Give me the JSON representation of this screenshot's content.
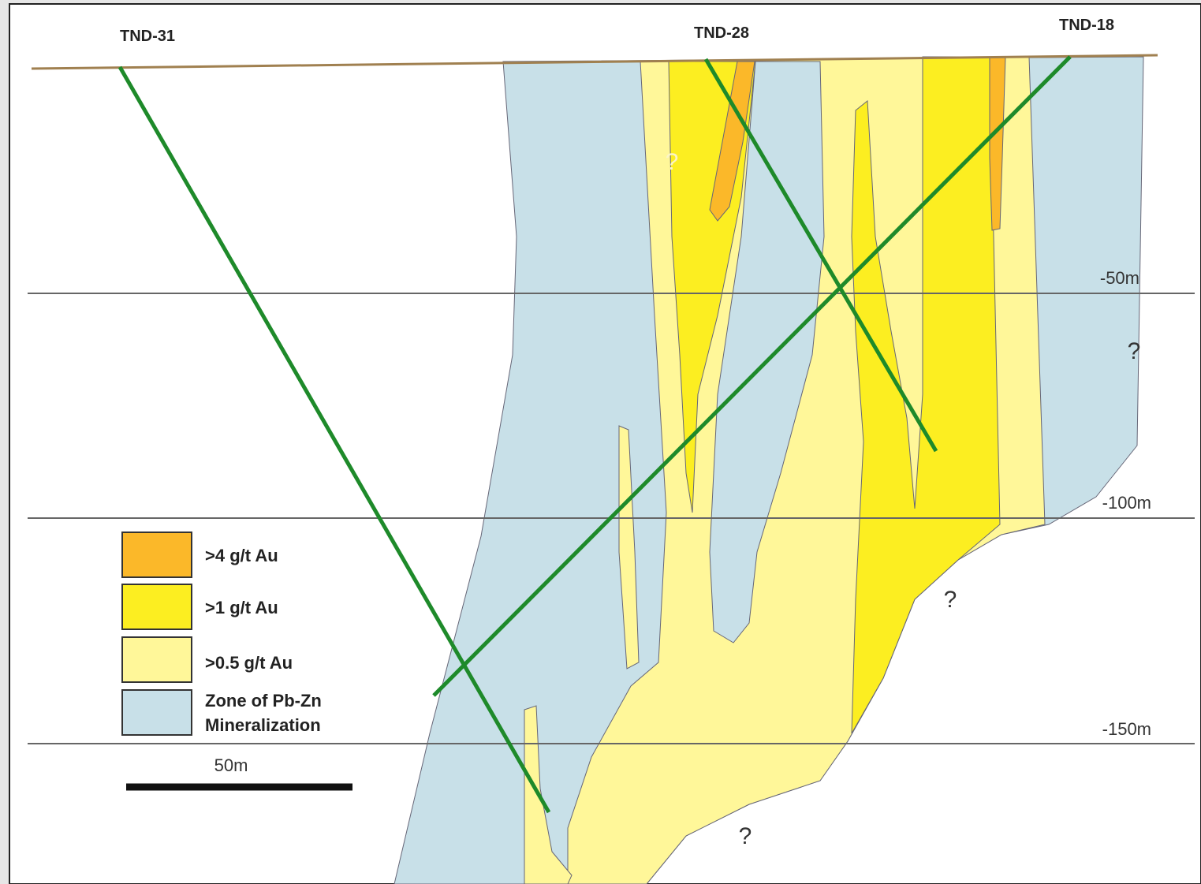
{
  "drill_holes": [
    "TND-31",
    "TND-28",
    "TND-18"
  ],
  "depths": [
    "-50m",
    "-100m",
    "-150m"
  ],
  "legend": [
    {
      "label": ">4 g/t Au"
    },
    {
      "label": ">1 g/t Au"
    },
    {
      "label": ">0.5 g/t Au"
    },
    {
      "label": [
        "Zone of Pb-Zn",
        "Mineralization"
      ]
    }
  ],
  "scale_label": "50m",
  "question_marks": [
    "?",
    "?",
    "?",
    "?"
  ]
}
